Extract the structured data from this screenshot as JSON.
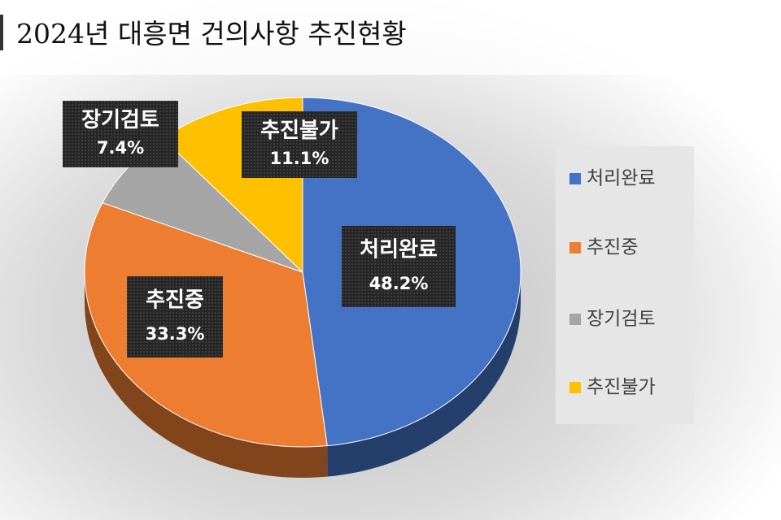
{
  "chart_data": {
    "type": "pie",
    "title": "2024년 대흥면 건의사항 추진현황",
    "categories": [
      "처리완료",
      "추진중",
      "장기검토",
      "추진불가"
    ],
    "values": [
      48.2,
      33.3,
      7.4,
      11.1
    ],
    "value_labels": [
      "48.2%",
      "33.3%",
      "7.4%",
      "11.1%"
    ],
    "colors": [
      "#4472c4",
      "#ed7d31",
      "#a5a5a5",
      "#ffc000"
    ],
    "legend": "right"
  }
}
